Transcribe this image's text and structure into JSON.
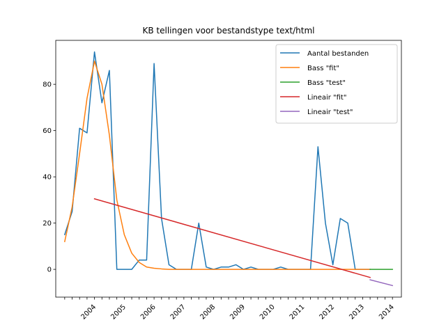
{
  "chart_data": {
    "type": "line",
    "title": "KB tellingen voor bestandstype text/html",
    "xlabel": "",
    "ylabel": "",
    "ylim": [
      -12,
      99
    ],
    "xlim": [
      -1.2,
      45.2
    ],
    "yticks": [
      0,
      20,
      40,
      60,
      80
    ],
    "x_tick_positions": [
      0,
      1,
      2,
      3,
      4,
      5,
      6,
      7,
      8,
      9,
      10,
      11,
      12,
      13,
      14,
      15,
      16,
      17,
      18,
      19,
      20,
      21,
      22,
      23,
      24,
      25,
      26,
      27,
      28,
      29,
      30,
      31,
      32,
      33,
      34,
      35,
      36,
      37,
      38,
      39,
      40,
      41,
      42,
      43,
      44
    ],
    "x_tick_labels": [
      "",
      "",
      "",
      "",
      "2004",
      "",
      "",
      "",
      "2005",
      "",
      "",
      "",
      "2006",
      "",
      "",
      "",
      "2007",
      "",
      "",
      "",
      "2008",
      "",
      "",
      "",
      "2009",
      "",
      "",
      "",
      "2010",
      "",
      "",
      "",
      "2011",
      "",
      "",
      "",
      "2012",
      "",
      "",
      "",
      "2013",
      "",
      "",
      "",
      "2014"
    ],
    "grid": false,
    "legend_position": "top-right",
    "series": [
      {
        "name": "Aantal bestanden",
        "color": "#1f77b4",
        "x": [
          0,
          1,
          2,
          3,
          4,
          5,
          6,
          7,
          8,
          9,
          10,
          11,
          12,
          13,
          14,
          15,
          16,
          17,
          18,
          19,
          20,
          21,
          22,
          23,
          24,
          25,
          26,
          27,
          28,
          29,
          30,
          31,
          32,
          33,
          34,
          35,
          36,
          37,
          38,
          39,
          40,
          41
        ],
        "values": [
          15,
          25,
          61,
          59,
          94,
          72,
          86,
          0,
          0,
          0,
          4,
          4,
          89,
          22,
          2,
          0,
          0,
          0,
          20,
          1,
          0,
          1,
          1,
          2,
          0,
          1,
          0,
          0,
          0,
          1,
          0,
          0,
          0,
          0,
          53,
          20,
          2,
          22,
          20,
          0,
          0,
          0
        ]
      },
      {
        "name": "Bass \"fit\"",
        "color": "#ff7f0e",
        "x": [
          0,
          1,
          2,
          3,
          4,
          5,
          6,
          7,
          8,
          9,
          10,
          11,
          12,
          13,
          14,
          15,
          16,
          17,
          18,
          19,
          20,
          21,
          22,
          23,
          24,
          25,
          26,
          27,
          28,
          29,
          30,
          31,
          32,
          33,
          34,
          35,
          36,
          37,
          38,
          39,
          40,
          41
        ],
        "values": [
          12,
          27,
          50,
          74,
          90,
          80,
          58,
          30,
          15,
          7,
          3,
          1,
          0.5,
          0.2,
          0,
          0,
          0,
          0,
          0,
          0,
          0,
          0,
          0,
          0,
          0,
          0,
          0,
          0,
          0,
          0,
          0,
          0,
          0,
          0,
          0,
          0,
          0,
          0,
          0,
          0,
          0,
          0
        ]
      },
      {
        "name": "Bass \"test\"",
        "color": "#2ca02c",
        "x": [
          41,
          42,
          43,
          44
        ],
        "values": [
          0,
          0,
          0,
          0
        ]
      },
      {
        "name": "Lineair \"fit\"",
        "color": "#d62728",
        "x": [
          4,
          41
        ],
        "values": [
          30.5,
          -3.5
        ]
      },
      {
        "name": "Lineair \"test\"",
        "color": "#9467bd",
        "x": [
          41,
          44
        ],
        "values": [
          -4.5,
          -7
        ]
      }
    ]
  }
}
